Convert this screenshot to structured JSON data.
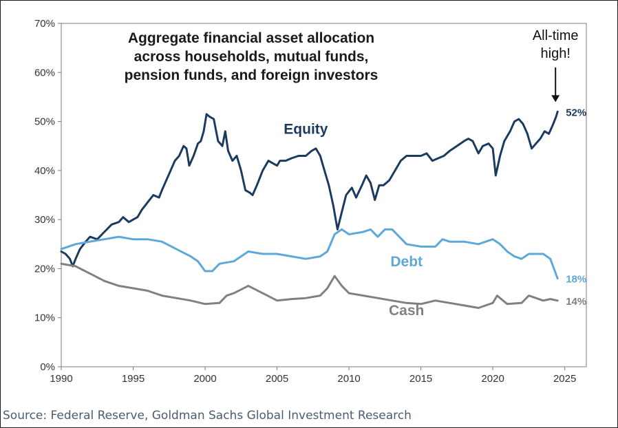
{
  "chart_data": {
    "type": "line",
    "title": "Aggregate financial asset allocation\nacross households, mutual funds,\npension funds, and foreign investors",
    "xlabel": "",
    "ylabel": "",
    "xlim": [
      1990,
      2026.5
    ],
    "ylim": [
      0,
      70
    ],
    "x_ticks": [
      "1990",
      "1995",
      "2000",
      "2005",
      "2010",
      "2015",
      "2020",
      "2025"
    ],
    "y_ticks": [
      "0%",
      "10%",
      "20%",
      "30%",
      "40%",
      "50%",
      "60%",
      "70%"
    ],
    "grid": false,
    "legend": "inline labels",
    "series": [
      {
        "name": "Equity",
        "color": "#1b3a5f",
        "end_label": "52%",
        "points": [
          [
            1990,
            23.5
          ],
          [
            1990.3,
            23
          ],
          [
            1990.6,
            22
          ],
          [
            1990.8,
            20.5
          ],
          [
            1991,
            22
          ],
          [
            1991.3,
            24
          ],
          [
            1991.7,
            25.5
          ],
          [
            1992,
            26.5
          ],
          [
            1992.5,
            26
          ],
          [
            1993,
            27.5
          ],
          [
            1993.5,
            29
          ],
          [
            1994,
            29.5
          ],
          [
            1994.3,
            30.5
          ],
          [
            1994.7,
            29.5
          ],
          [
            1995,
            30
          ],
          [
            1995.3,
            30.5
          ],
          [
            1995.6,
            32
          ],
          [
            1996,
            33.5
          ],
          [
            1996.4,
            35
          ],
          [
            1996.8,
            34.5
          ],
          [
            1997,
            36
          ],
          [
            1997.3,
            38
          ],
          [
            1997.6,
            40
          ],
          [
            1997.9,
            42
          ],
          [
            1998.2,
            43
          ],
          [
            1998.5,
            45
          ],
          [
            1998.7,
            44.5
          ],
          [
            1998.9,
            41
          ],
          [
            1999.2,
            43
          ],
          [
            1999.5,
            45.5
          ],
          [
            1999.7,
            46
          ],
          [
            1999.9,
            48
          ],
          [
            2000.1,
            51.5
          ],
          [
            2000.3,
            51
          ],
          [
            2000.6,
            50.5
          ],
          [
            2000.9,
            46
          ],
          [
            2001.2,
            45
          ],
          [
            2001.4,
            48
          ],
          [
            2001.6,
            44
          ],
          [
            2001.9,
            42
          ],
          [
            2002.2,
            43
          ],
          [
            2002.5,
            40
          ],
          [
            2002.8,
            36
          ],
          [
            2003.1,
            35.5
          ],
          [
            2003.3,
            35
          ],
          [
            2003.6,
            37
          ],
          [
            2004,
            40
          ],
          [
            2004.4,
            42
          ],
          [
            2004.7,
            41.5
          ],
          [
            2005,
            41
          ],
          [
            2005.2,
            42
          ],
          [
            2005.6,
            42
          ],
          [
            2006,
            42.5
          ],
          [
            2006.5,
            43
          ],
          [
            2007,
            43
          ],
          [
            2007.4,
            44
          ],
          [
            2007.7,
            44.5
          ],
          [
            2008,
            43
          ],
          [
            2008.3,
            40
          ],
          [
            2008.6,
            37
          ],
          [
            2008.9,
            33
          ],
          [
            2009.2,
            28
          ],
          [
            2009.5,
            31.5
          ],
          [
            2009.8,
            35
          ],
          [
            2010.2,
            36.5
          ],
          [
            2010.5,
            34.5
          ],
          [
            2010.9,
            37
          ],
          [
            2011.2,
            39
          ],
          [
            2011.5,
            37.5
          ],
          [
            2011.8,
            34
          ],
          [
            2012.1,
            37
          ],
          [
            2012.4,
            37
          ],
          [
            2012.8,
            38
          ],
          [
            2013.2,
            40
          ],
          [
            2013.6,
            42
          ],
          [
            2014,
            43
          ],
          [
            2014.5,
            43
          ],
          [
            2015,
            43
          ],
          [
            2015.4,
            43.5
          ],
          [
            2015.8,
            42
          ],
          [
            2016.2,
            42.5
          ],
          [
            2016.6,
            43
          ],
          [
            2017,
            44
          ],
          [
            2017.5,
            45
          ],
          [
            2018,
            46
          ],
          [
            2018.3,
            46.5
          ],
          [
            2018.6,
            46
          ],
          [
            2019,
            43.5
          ],
          [
            2019.3,
            45
          ],
          [
            2019.7,
            45.5
          ],
          [
            2020,
            44.5
          ],
          [
            2020.2,
            39
          ],
          [
            2020.5,
            43
          ],
          [
            2020.8,
            46
          ],
          [
            2021.2,
            48
          ],
          [
            2021.5,
            50
          ],
          [
            2021.8,
            50.5
          ],
          [
            2022.1,
            49.5
          ],
          [
            2022.4,
            47.5
          ],
          [
            2022.7,
            44.5
          ],
          [
            2023,
            45.5
          ],
          [
            2023.3,
            46.5
          ],
          [
            2023.6,
            48
          ],
          [
            2023.9,
            47.5
          ],
          [
            2024.2,
            49.5
          ],
          [
            2024.4,
            51
          ],
          [
            2024.5,
            52
          ]
        ]
      },
      {
        "name": "Debt",
        "color": "#5ea7d9",
        "end_label": "18%",
        "points": [
          [
            1990,
            24
          ],
          [
            1991,
            25
          ],
          [
            1992,
            25.5
          ],
          [
            1993,
            26
          ],
          [
            1994,
            26.5
          ],
          [
            1995,
            26
          ],
          [
            1996,
            26
          ],
          [
            1997,
            25.5
          ],
          [
            1998,
            24
          ],
          [
            1999,
            22.5
          ],
          [
            1999.5,
            21.5
          ],
          [
            2000,
            19.5
          ],
          [
            2000.5,
            19.5
          ],
          [
            2001,
            21
          ],
          [
            2002,
            21.5
          ],
          [
            2002.5,
            22.5
          ],
          [
            2003,
            23.5
          ],
          [
            2004,
            23
          ],
          [
            2005,
            23
          ],
          [
            2006,
            22.5
          ],
          [
            2007,
            22
          ],
          [
            2008,
            22.5
          ],
          [
            2008.5,
            23.5
          ],
          [
            2009,
            27
          ],
          [
            2009.5,
            28
          ],
          [
            2010,
            27
          ],
          [
            2011,
            27.5
          ],
          [
            2011.5,
            28
          ],
          [
            2012,
            26.5
          ],
          [
            2012.5,
            28
          ],
          [
            2013,
            28
          ],
          [
            2013.5,
            26.5
          ],
          [
            2014,
            25
          ],
          [
            2015,
            24.5
          ],
          [
            2016,
            24.5
          ],
          [
            2016.5,
            26
          ],
          [
            2017,
            25.5
          ],
          [
            2018,
            25.5
          ],
          [
            2019,
            25
          ],
          [
            2020,
            26
          ],
          [
            2020.5,
            25
          ],
          [
            2021,
            23.5
          ],
          [
            2021.5,
            22.5
          ],
          [
            2022,
            22
          ],
          [
            2022.5,
            23
          ],
          [
            2023,
            23
          ],
          [
            2023.5,
            23
          ],
          [
            2024,
            22
          ],
          [
            2024.5,
            18
          ]
        ]
      },
      {
        "name": "Cash",
        "color": "#808080",
        "end_label": "14%",
        "points": [
          [
            1990,
            21
          ],
          [
            1991,
            20.5
          ],
          [
            1992,
            19
          ],
          [
            1993,
            17.5
          ],
          [
            1994,
            16.5
          ],
          [
            1995,
            16
          ],
          [
            1996,
            15.5
          ],
          [
            1997,
            14.5
          ],
          [
            1998,
            14
          ],
          [
            1999,
            13.5
          ],
          [
            2000,
            12.8
          ],
          [
            2001,
            13
          ],
          [
            2001.5,
            14.5
          ],
          [
            2002,
            15
          ],
          [
            2003,
            16.5
          ],
          [
            2004,
            15
          ],
          [
            2005,
            13.5
          ],
          [
            2006,
            13.8
          ],
          [
            2007,
            14
          ],
          [
            2008,
            14.5
          ],
          [
            2008.5,
            16
          ],
          [
            2009,
            18.5
          ],
          [
            2009.5,
            16.5
          ],
          [
            2010,
            15
          ],
          [
            2011,
            14.5
          ],
          [
            2012,
            14
          ],
          [
            2013,
            13.5
          ],
          [
            2014,
            13
          ],
          [
            2015,
            12.8
          ],
          [
            2016,
            13.5
          ],
          [
            2017,
            13
          ],
          [
            2018,
            12.5
          ],
          [
            2019,
            12
          ],
          [
            2020,
            13
          ],
          [
            2020.3,
            14.5
          ],
          [
            2021,
            12.8
          ],
          [
            2022,
            13
          ],
          [
            2022.5,
            14.5
          ],
          [
            2023,
            14
          ],
          [
            2023.5,
            13.5
          ],
          [
            2024,
            13.8
          ],
          [
            2024.5,
            13.5
          ]
        ]
      }
    ],
    "annotations": [
      {
        "text": "All-time\nhigh!",
        "target_x": 2024.5,
        "target_y": 52
      }
    ],
    "source": "Source: Federal Reserve, Goldman Sachs Global Investment Research"
  }
}
